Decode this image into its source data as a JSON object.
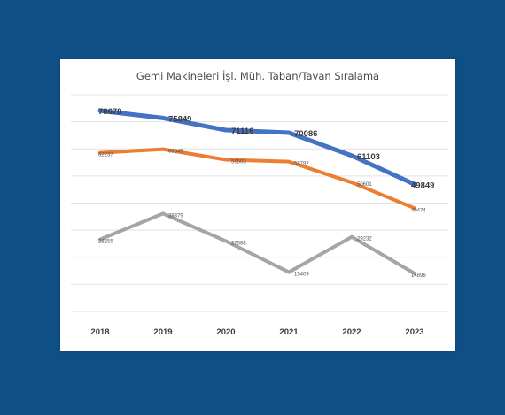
{
  "chart_data": {
    "type": "line",
    "title": "Gemi Makineleri İşl. Müh. Taban/Tavan Sıralama",
    "xlabel": "",
    "ylabel": "",
    "categories": [
      "2018",
      "2019",
      "2020",
      "2021",
      "2022",
      "2023"
    ],
    "ylim": [
      0,
      85000
    ],
    "grid": true,
    "legend": "bottom",
    "series": [
      {
        "color": "#4472c4",
        "values": [
          78678,
          75849,
          71116,
          70086,
          61103,
          49849
        ],
        "labels": [
          "78678",
          "75849",
          "71116",
          "70086",
          "61103",
          "49849"
        ]
      },
      {
        "color": "#ed7d31",
        "values": [
          62237,
          63645,
          59503,
          58782,
          50601,
          40474
        ],
        "labels": [
          "62237",
          "63645",
          "59503",
          "58782",
          "50601",
          "40474"
        ]
      },
      {
        "color": "#a5a5a5",
        "values": [
          28255,
          38379,
          27588,
          15409,
          29232,
          14896
        ],
        "labels": [
          "28255",
          "38379",
          "27588",
          "15409",
          "29232",
          "14896"
        ]
      }
    ]
  }
}
